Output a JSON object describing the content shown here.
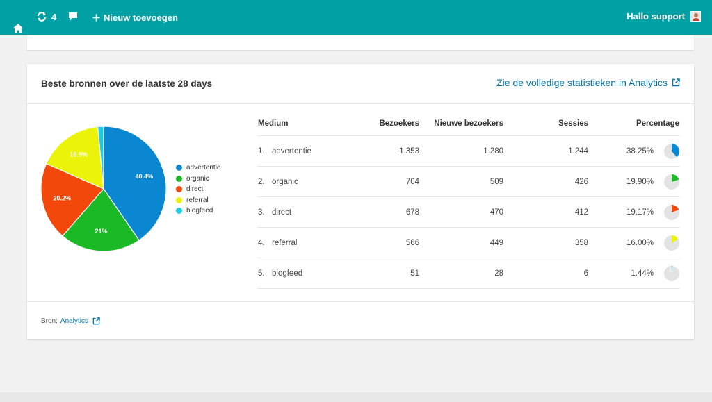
{
  "topbar": {
    "updates_count": "4",
    "new_label": "Nieuw toevoegen",
    "greeting": "Hallo support",
    "icons": [
      "home-icon",
      "updates-icon",
      "comment-icon",
      "plus-icon"
    ],
    "color": "#00a0a5"
  },
  "widget": {
    "title": "Beste bronnen over de laatste 28 days",
    "link_label": "Zie de volledige statistieken in Analytics",
    "footer_prefix": "Bron:",
    "footer_link": "Analytics"
  },
  "table": {
    "headers": {
      "medium": "Medium",
      "bezoekers": "Bezoekers",
      "nieuwe": "Nieuwe bezoekers",
      "sessies": "Sessies",
      "percentage": "Percentage"
    },
    "rows": [
      {
        "idx": "1.",
        "medium": "advertentie",
        "bezoekers": "1.353",
        "nieuwe": "1.280",
        "sessies": "1.244",
        "percentage": "38.25%"
      },
      {
        "idx": "2.",
        "medium": "organic",
        "bezoekers": "704",
        "nieuwe": "509",
        "sessies": "426",
        "percentage": "19.90%"
      },
      {
        "idx": "3.",
        "medium": "direct",
        "bezoekers": "678",
        "nieuwe": "470",
        "sessies": "412",
        "percentage": "19.17%"
      },
      {
        "idx": "4.",
        "medium": "referral",
        "bezoekers": "566",
        "nieuwe": "449",
        "sessies": "358",
        "percentage": "16.00%"
      },
      {
        "idx": "5.",
        "medium": "blogfeed",
        "bezoekers": "51",
        "nieuwe": "28",
        "sessies": "6",
        "percentage": "1.44%"
      }
    ]
  },
  "chart_data": {
    "type": "pie",
    "categories": [
      "advertentie",
      "organic",
      "direct",
      "referral",
      "blogfeed"
    ],
    "values": [
      40.4,
      21,
      20.2,
      16.9,
      1.5
    ],
    "labels": [
      "40.4%",
      "21%",
      "20.2%",
      "16.9%",
      ""
    ],
    "colors": [
      "#0a87d0",
      "#1cb927",
      "#f2480c",
      "#ecf30a",
      "#1ccde8"
    ],
    "legend_position": "right",
    "row_share": [
      38.25,
      19.9,
      19.17,
      16.0,
      1.44
    ]
  }
}
